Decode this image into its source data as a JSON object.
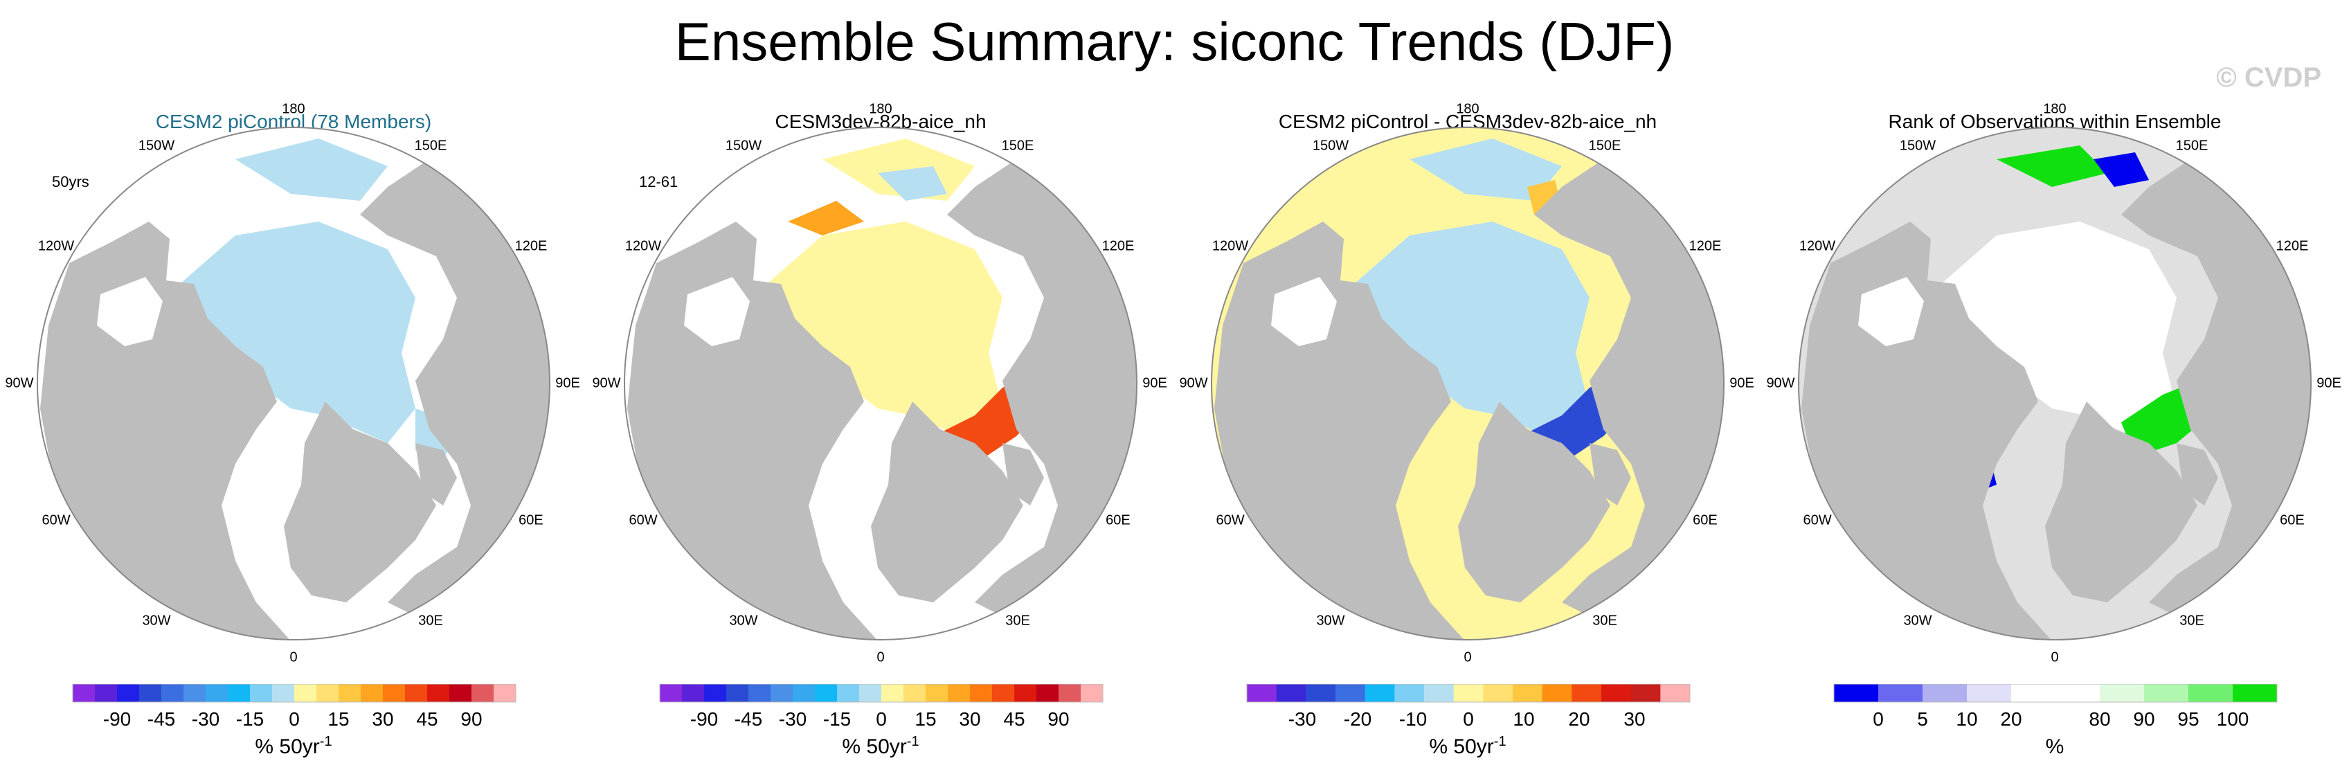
{
  "figure": {
    "title": "Ensemble Summary: siconc Trends (DJF)",
    "watermark": "© CVDP"
  },
  "chart_data": [
    {
      "type": "heatmap",
      "projection": "north polar stereographic",
      "title": "CESM2 piControl (78 Members)",
      "tag": "50yrs",
      "variable": "siconc trend",
      "season": "DJF",
      "units": "% 50yr",
      "units_exp": "-1",
      "longitude_labels": [
        "180",
        "150E",
        "120E",
        "90E",
        "60E",
        "30E",
        "0",
        "30W",
        "60W",
        "90W",
        "120W",
        "150W"
      ],
      "colorbar": {
        "ticks": [
          "-90",
          "-45",
          "-30",
          "-15",
          "0",
          "15",
          "30",
          "45",
          "90"
        ],
        "colors": [
          "#8a2be2",
          "#5b22d9",
          "#2020e8",
          "#2c4bd4",
          "#3b6ee0",
          "#4a8fe8",
          "#35a8f0",
          "#12b8f5",
          "#7dcff5",
          "#b6e0f2",
          "#fff6a0",
          "#ffe070",
          "#ffc640",
          "#ffa520",
          "#ff7a10",
          "#f24a10",
          "#de1a10",
          "#c00018",
          "#e05a60",
          "#ffb0b0"
        ]
      }
    },
    {
      "type": "heatmap",
      "projection": "north polar stereographic",
      "title": "CESM3dev-82b-aice_nh",
      "tag": "12-61",
      "variable": "siconc trend",
      "season": "DJF",
      "units": "% 50yr",
      "units_exp": "-1",
      "longitude_labels": [
        "180",
        "150E",
        "120E",
        "90E",
        "60E",
        "30E",
        "0",
        "30W",
        "60W",
        "90W",
        "120W",
        "150W"
      ],
      "colorbar": {
        "ticks": [
          "-90",
          "-45",
          "-30",
          "-15",
          "0",
          "15",
          "30",
          "45",
          "90"
        ],
        "colors": [
          "#8a2be2",
          "#5b22d9",
          "#2020e8",
          "#2c4bd4",
          "#3b6ee0",
          "#4a8fe8",
          "#35a8f0",
          "#12b8f5",
          "#7dcff5",
          "#b6e0f2",
          "#fff6a0",
          "#ffe070",
          "#ffc640",
          "#ffa520",
          "#ff7a10",
          "#f24a10",
          "#de1a10",
          "#c00018",
          "#e05a60",
          "#ffb0b0"
        ]
      }
    },
    {
      "type": "heatmap",
      "projection": "north polar stereographic",
      "title": "CESM2 piControl - CESM3dev-82b-aice_nh",
      "tag": "",
      "variable": "siconc trend difference",
      "season": "DJF",
      "units": "% 50yr",
      "units_exp": "-1",
      "longitude_labels": [
        "180",
        "150E",
        "120E",
        "90E",
        "60E",
        "30E",
        "0",
        "30W",
        "60W",
        "90W",
        "120W",
        "150W"
      ],
      "colorbar": {
        "ticks": [
          "-30",
          "-20",
          "-10",
          "0",
          "10",
          "20",
          "30"
        ],
        "colors": [
          "#8a2be2",
          "#3a28d8",
          "#2c4bd4",
          "#3b6ee0",
          "#12b8f5",
          "#7dcff5",
          "#b6e0f2",
          "#fff6a0",
          "#ffe070",
          "#ffc640",
          "#ff8f10",
          "#f24a10",
          "#de1a10",
          "#c8201c",
          "#ffb0b0"
        ]
      }
    },
    {
      "type": "heatmap",
      "projection": "north polar stereographic",
      "title": "Rank of Observations within Ensemble",
      "tag": "",
      "variable": "rank",
      "season": "DJF",
      "units": "%",
      "units_exp": "",
      "longitude_labels": [
        "180",
        "150E",
        "120E",
        "90E",
        "60E",
        "30E",
        "0",
        "30W",
        "60W",
        "90W",
        "120W",
        "150W"
      ],
      "colorbar": {
        "ticks": [
          "0",
          "5",
          "10",
          "20",
          "80",
          "90",
          "95",
          "100"
        ],
        "colors": [
          "#0000f0",
          "#6868f0",
          "#b0b0f0",
          "#e0e0f8",
          "#ffffff",
          "#ffffff",
          "#e0fae0",
          "#b0f8b0",
          "#70f070",
          "#10e010"
        ]
      }
    }
  ]
}
